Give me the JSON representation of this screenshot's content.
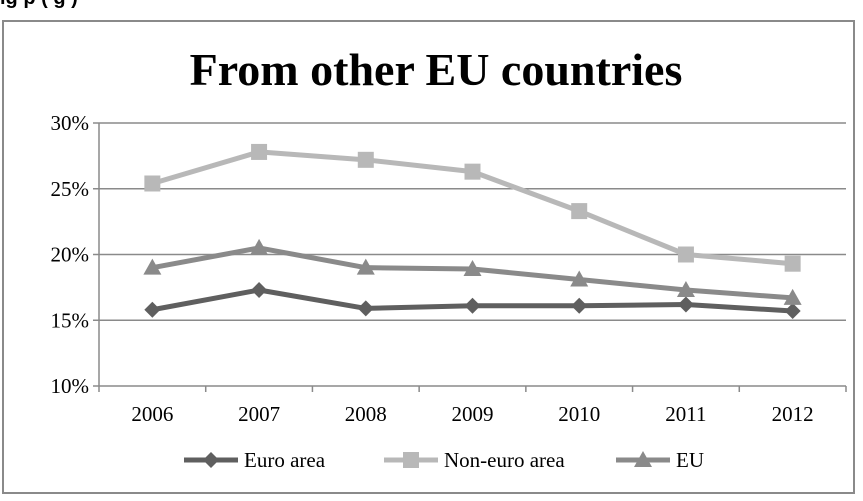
{
  "caption": "ig                                  p                                        (                                      g      )",
  "chart_data": {
    "type": "line",
    "title": "From other EU countries",
    "categories": [
      "2006",
      "2007",
      "2008",
      "2009",
      "2010",
      "2011",
      "2012"
    ],
    "y_ticks": [
      "10%",
      "15%",
      "20%",
      "25%",
      "30%"
    ],
    "ylim": [
      10,
      30
    ],
    "y_unit": "%",
    "grid": true,
    "legend_position": "bottom",
    "series": [
      {
        "name": "Euro area",
        "marker": "diamond",
        "color": "#5f5f5f",
        "values": [
          15.8,
          17.3,
          15.9,
          16.1,
          16.1,
          16.2,
          15.7
        ]
      },
      {
        "name": "Non-euro area",
        "marker": "square",
        "color": "#b8b8b8",
        "values": [
          25.4,
          27.8,
          27.2,
          26.3,
          23.3,
          20.0,
          19.3
        ]
      },
      {
        "name": "EU",
        "marker": "triangle",
        "color": "#8a8a8a",
        "values": [
          19.0,
          20.5,
          19.0,
          18.9,
          18.1,
          17.3,
          16.7
        ]
      }
    ]
  }
}
